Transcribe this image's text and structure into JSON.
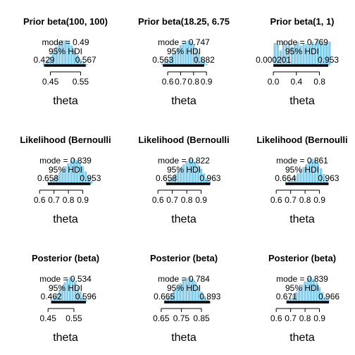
{
  "chart_data": [
    {
      "type": "bar",
      "title": "Prior beta(100, 100)",
      "xlabel": "theta",
      "xticks": [
        "0.45",
        "0.55"
      ],
      "xtick_values": [
        0.45,
        0.55
      ],
      "xlim": [
        0.395,
        0.605
      ],
      "mode_label": "mode = 0.49",
      "hdi_label": "95% HDI",
      "hdi": [
        0.429,
        0.567
      ],
      "hdi_low_label": "0.429",
      "hdi_high_label": "0.567",
      "x": [
        0.43,
        0.44,
        0.45,
        0.46,
        0.47,
        0.48,
        0.49,
        0.5,
        0.51,
        0.52,
        0.53,
        0.54,
        0.55,
        0.56,
        0.57
      ],
      "values": [
        0.1,
        0.2,
        0.35,
        0.55,
        0.75,
        0.9,
        1.0,
        1.0,
        0.93,
        0.8,
        0.6,
        0.42,
        0.25,
        0.13,
        0.06
      ]
    },
    {
      "type": "bar",
      "title": "Prior beta(18.25, 6.75",
      "xlabel": "theta",
      "xticks": [
        "0.6",
        "0.7",
        "0.8",
        "0.9"
      ],
      "xtick_values": [
        0.6,
        0.7,
        0.8,
        0.9
      ],
      "xlim": [
        0.48,
        0.97
      ],
      "mode_label": "mode = 0.747",
      "hdi_label": "95% HDI",
      "hdi": [
        0.563,
        0.882
      ],
      "hdi_low_label": "0.563",
      "hdi_high_label": "0.882",
      "x": [
        0.56,
        0.58,
        0.6,
        0.62,
        0.64,
        0.66,
        0.68,
        0.7,
        0.72,
        0.74,
        0.76,
        0.78,
        0.8,
        0.82,
        0.84,
        0.86,
        0.88,
        0.9
      ],
      "values": [
        0.1,
        0.15,
        0.25,
        0.35,
        0.45,
        0.58,
        0.7,
        0.82,
        0.9,
        0.97,
        1.0,
        0.95,
        0.85,
        0.7,
        0.52,
        0.35,
        0.2,
        0.08
      ]
    },
    {
      "type": "bar",
      "title": "Prior beta(1, 1)",
      "xlabel": "theta",
      "xticks": [
        "0.0",
        "0.4",
        "0.8"
      ],
      "xtick_values": [
        0.0,
        0.4,
        0.8
      ],
      "xlim": [
        -0.05,
        1.05
      ],
      "mode_label": "mode = 0.769",
      "hdi_label": "95% HDI",
      "hdi": [
        0.000201,
        0.953
      ],
      "hdi_low_label": "0.000201",
      "hdi_high_label": "0.953",
      "x": [
        0.025,
        0.075,
        0.125,
        0.175,
        0.225,
        0.275,
        0.325,
        0.375,
        0.425,
        0.475,
        0.525,
        0.575,
        0.625,
        0.675,
        0.725,
        0.775,
        0.825,
        0.875,
        0.925,
        0.975
      ],
      "values": [
        0.9,
        0.85,
        0.6,
        0.95,
        0.8,
        0.9,
        0.75,
        0.85,
        0.95,
        0.8,
        0.9,
        0.85,
        0.8,
        0.95,
        0.85,
        1.0,
        0.9,
        0.85,
        0.9,
        0.95
      ]
    },
    {
      "type": "bar",
      "title": "Likelihood (Bernoulli",
      "xlabel": "theta",
      "xticks": [
        "0.6",
        "0.7",
        "0.8",
        "0.9"
      ],
      "xtick_values": [
        0.6,
        0.7,
        0.8,
        0.9
      ],
      "xlim": [
        0.56,
        1.0
      ],
      "mode_label": "mode = 0.839",
      "hdi_label": "95% HDI",
      "hdi": [
        0.658,
        0.953
      ],
      "hdi_low_label": "0.658",
      "hdi_high_label": "0.953",
      "x": [
        0.66,
        0.68,
        0.7,
        0.72,
        0.74,
        0.76,
        0.78,
        0.8,
        0.82,
        0.84,
        0.86,
        0.88,
        0.9,
        0.92,
        0.94,
        0.96
      ],
      "values": [
        0.1,
        0.15,
        0.25,
        0.35,
        0.45,
        0.58,
        0.7,
        0.82,
        0.92,
        1.0,
        0.95,
        0.85,
        0.7,
        0.5,
        0.3,
        0.12
      ]
    },
    {
      "type": "bar",
      "title": "Likelihood (Bernoulli",
      "xlabel": "theta",
      "xticks": [
        "0.6",
        "0.7",
        "0.8",
        "0.9"
      ],
      "xtick_values": [
        0.6,
        0.7,
        0.8,
        0.9
      ],
      "xlim": [
        0.56,
        1.0
      ],
      "mode_label": "mode = 0.822",
      "hdi_label": "95% HDI",
      "hdi": [
        0.658,
        0.963
      ],
      "hdi_low_label": "0.658",
      "hdi_high_label": "0.963",
      "x": [
        0.66,
        0.68,
        0.7,
        0.72,
        0.74,
        0.76,
        0.78,
        0.8,
        0.82,
        0.84,
        0.86,
        0.88,
        0.9,
        0.92,
        0.94,
        0.96
      ],
      "values": [
        0.1,
        0.18,
        0.28,
        0.4,
        0.52,
        0.65,
        0.78,
        0.9,
        1.0,
        0.97,
        0.88,
        0.75,
        0.6,
        0.42,
        0.25,
        0.1
      ]
    },
    {
      "type": "bar",
      "title": "Likelihood (Bernoulli",
      "xlabel": "theta",
      "xticks": [
        "0.6",
        "0.7",
        "0.8",
        "0.9"
      ],
      "xtick_values": [
        0.6,
        0.7,
        0.8,
        0.9
      ],
      "xlim": [
        0.56,
        1.0
      ],
      "mode_label": "mode = 0.861",
      "hdi_label": "95% HDI",
      "hdi": [
        0.664,
        0.963
      ],
      "hdi_low_label": "0.664",
      "hdi_high_label": "0.963",
      "x": [
        0.67,
        0.69,
        0.71,
        0.73,
        0.75,
        0.77,
        0.79,
        0.81,
        0.83,
        0.85,
        0.87,
        0.89,
        0.91,
        0.93,
        0.95
      ],
      "values": [
        0.1,
        0.15,
        0.22,
        0.32,
        0.42,
        0.55,
        0.67,
        0.78,
        0.9,
        1.0,
        0.95,
        0.82,
        0.62,
        0.4,
        0.18
      ]
    },
    {
      "type": "bar",
      "title": "Posterior (beta)",
      "xlabel": "theta",
      "xticks": [
        "0.45",
        "0.55"
      ],
      "xtick_values": [
        0.45,
        0.55
      ],
      "xlim": [
        0.395,
        0.64
      ],
      "mode_label": "mode = 0.534",
      "hdi_label": "95% HDI",
      "hdi": [
        0.462,
        0.596
      ],
      "hdi_low_label": "0.462",
      "hdi_high_label": "0.596",
      "x": [
        0.465,
        0.475,
        0.485,
        0.495,
        0.505,
        0.515,
        0.525,
        0.535,
        0.545,
        0.555,
        0.565,
        0.575,
        0.585,
        0.595
      ],
      "values": [
        0.12,
        0.22,
        0.35,
        0.5,
        0.65,
        0.8,
        0.93,
        1.0,
        0.95,
        0.82,
        0.62,
        0.42,
        0.25,
        0.12
      ]
    },
    {
      "type": "bar",
      "title": "Posterior (beta)",
      "xlabel": "theta",
      "xticks": [
        "0.65",
        "0.75",
        "0.85"
      ],
      "xtick_values": [
        0.65,
        0.75,
        0.85
      ],
      "xlim": [
        0.605,
        0.92
      ],
      "mode_label": "mode = 0.784",
      "hdi_label": "95% HDI",
      "hdi": [
        0.665,
        0.893
      ],
      "hdi_low_label": "0.665",
      "hdi_high_label": "0.893",
      "x": [
        0.67,
        0.685,
        0.7,
        0.715,
        0.73,
        0.745,
        0.76,
        0.775,
        0.79,
        0.805,
        0.82,
        0.835,
        0.85,
        0.865,
        0.88
      ],
      "values": [
        0.12,
        0.2,
        0.32,
        0.45,
        0.6,
        0.75,
        0.88,
        0.97,
        1.0,
        0.93,
        0.8,
        0.62,
        0.42,
        0.25,
        0.12
      ]
    },
    {
      "type": "bar",
      "title": "Posterior (beta)",
      "xlabel": "theta",
      "xticks": [
        "0.6",
        "0.7",
        "0.8",
        "0.9"
      ],
      "xtick_values": [
        0.6,
        0.7,
        0.8,
        0.9
      ],
      "xlim": [
        0.56,
        1.0
      ],
      "mode_label": "mode = 0.839",
      "hdi_label": "95% HDI",
      "hdi": [
        0.671,
        0.966
      ],
      "hdi_low_label": "0.671",
      "hdi_high_label": "0.966",
      "x": [
        0.68,
        0.7,
        0.72,
        0.74,
        0.76,
        0.78,
        0.8,
        0.82,
        0.84,
        0.86,
        0.88,
        0.9,
        0.92,
        0.94,
        0.96
      ],
      "values": [
        0.12,
        0.18,
        0.28,
        0.4,
        0.55,
        0.7,
        0.83,
        0.95,
        1.0,
        0.92,
        0.78,
        0.6,
        0.4,
        0.22,
        0.1
      ]
    }
  ]
}
